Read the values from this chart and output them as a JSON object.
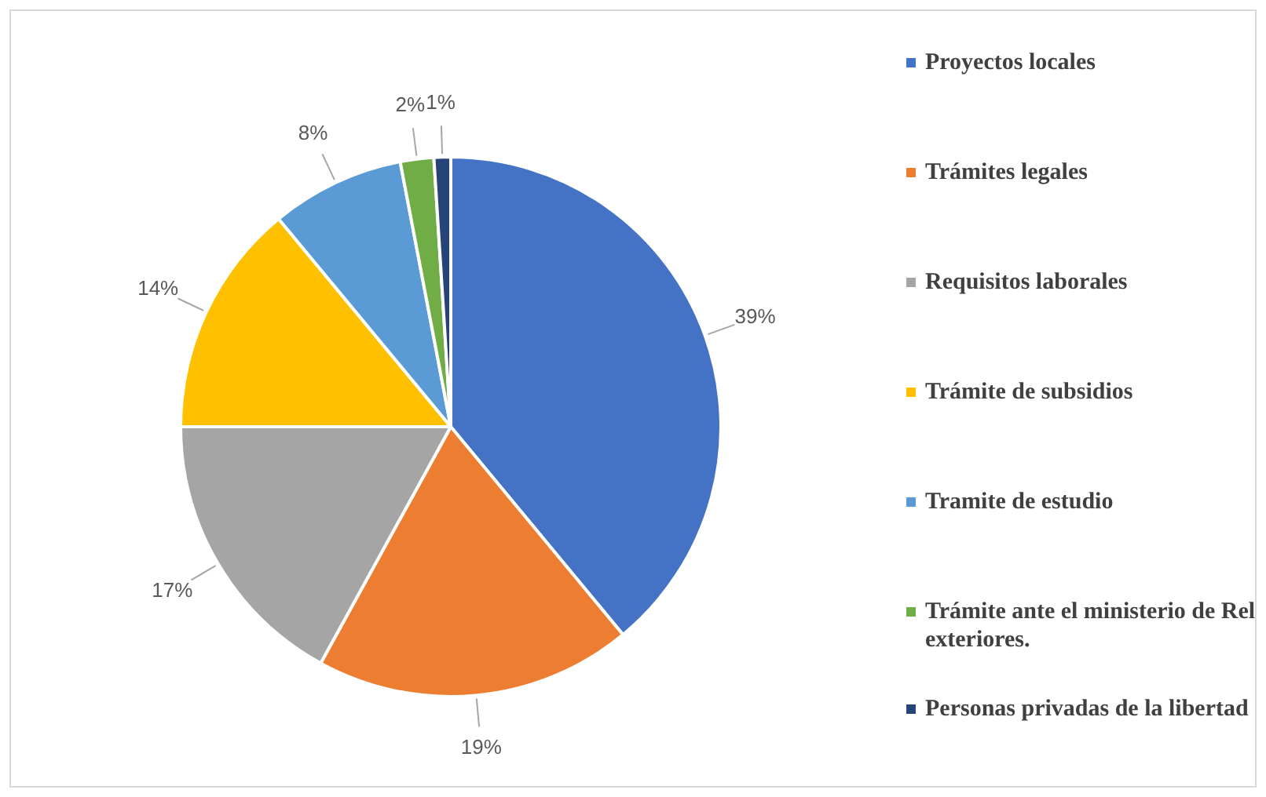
{
  "chart_data": {
    "type": "pie",
    "categories": [
      "Proyectos locales",
      "Trámites legales",
      "Requisitos laborales",
      "Trámite de subsidios",
      "Tramite de estudio",
      "Trámite ante el ministerio de Rel exteriores.",
      "Personas privadas de la libertad"
    ],
    "values": [
      39,
      19,
      17,
      14,
      8,
      2,
      1
    ],
    "colors": [
      "#4472c4",
      "#ed7d31",
      "#a5a5a5",
      "#ffc000",
      "#5b9bd5",
      "#70ad47",
      "#264478"
    ],
    "value_labels": [
      "39%",
      "19%",
      "17%",
      "14%",
      "8%",
      "2%",
      "1%"
    ],
    "legend": "right"
  }
}
